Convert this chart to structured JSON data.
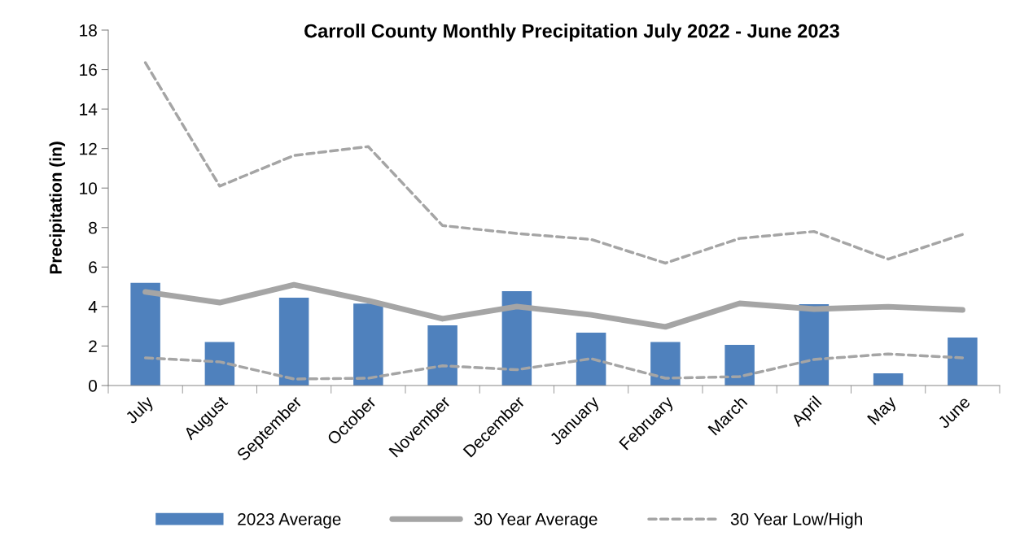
{
  "chart_data": {
    "type": "bar",
    "title": "Carroll County Monthly Precipitation July 2022 - June 2023",
    "ylabel": "Precipitation (in)",
    "categories": [
      "July",
      "August",
      "September",
      "October",
      "November",
      "December",
      "January",
      "February",
      "March",
      "April",
      "May",
      "June"
    ],
    "series": [
      {
        "name": "2023 Average",
        "color": "#4f81bd",
        "values": [
          5.2,
          2.2,
          4.45,
          4.15,
          3.05,
          4.78,
          2.68,
          2.2,
          2.06,
          4.12,
          0.62,
          2.43
        ]
      },
      {
        "name": "30 Year Average",
        "type": "line",
        "line_style": "solid",
        "color": "#a5a5a5",
        "values": [
          4.74,
          4.2,
          5.1,
          4.3,
          3.38,
          4.0,
          3.58,
          2.97,
          4.16,
          3.87,
          3.99,
          3.83
        ]
      },
      {
        "name": "30 Year Low/High",
        "type": "line",
        "line_style": "dashed",
        "color": "#a5a5a5",
        "values": [
          1.4,
          1.2,
          0.33,
          0.37,
          1.0,
          0.8,
          1.36,
          0.37,
          0.45,
          1.32,
          1.6,
          1.4
        ]
      },
      {
        "type": "line",
        "line_style": "dashed",
        "color": "#a5a5a5",
        "values": [
          16.35,
          10.1,
          11.65,
          12.1,
          8.1,
          7.7,
          7.4,
          6.2,
          7.45,
          7.8,
          6.4,
          7.65
        ]
      }
    ],
    "ylim": [
      0,
      18
    ],
    "yticks": [
      0,
      2,
      4,
      6,
      8,
      10,
      12,
      14,
      16,
      18
    ],
    "grid": false,
    "legend": "bottom"
  }
}
